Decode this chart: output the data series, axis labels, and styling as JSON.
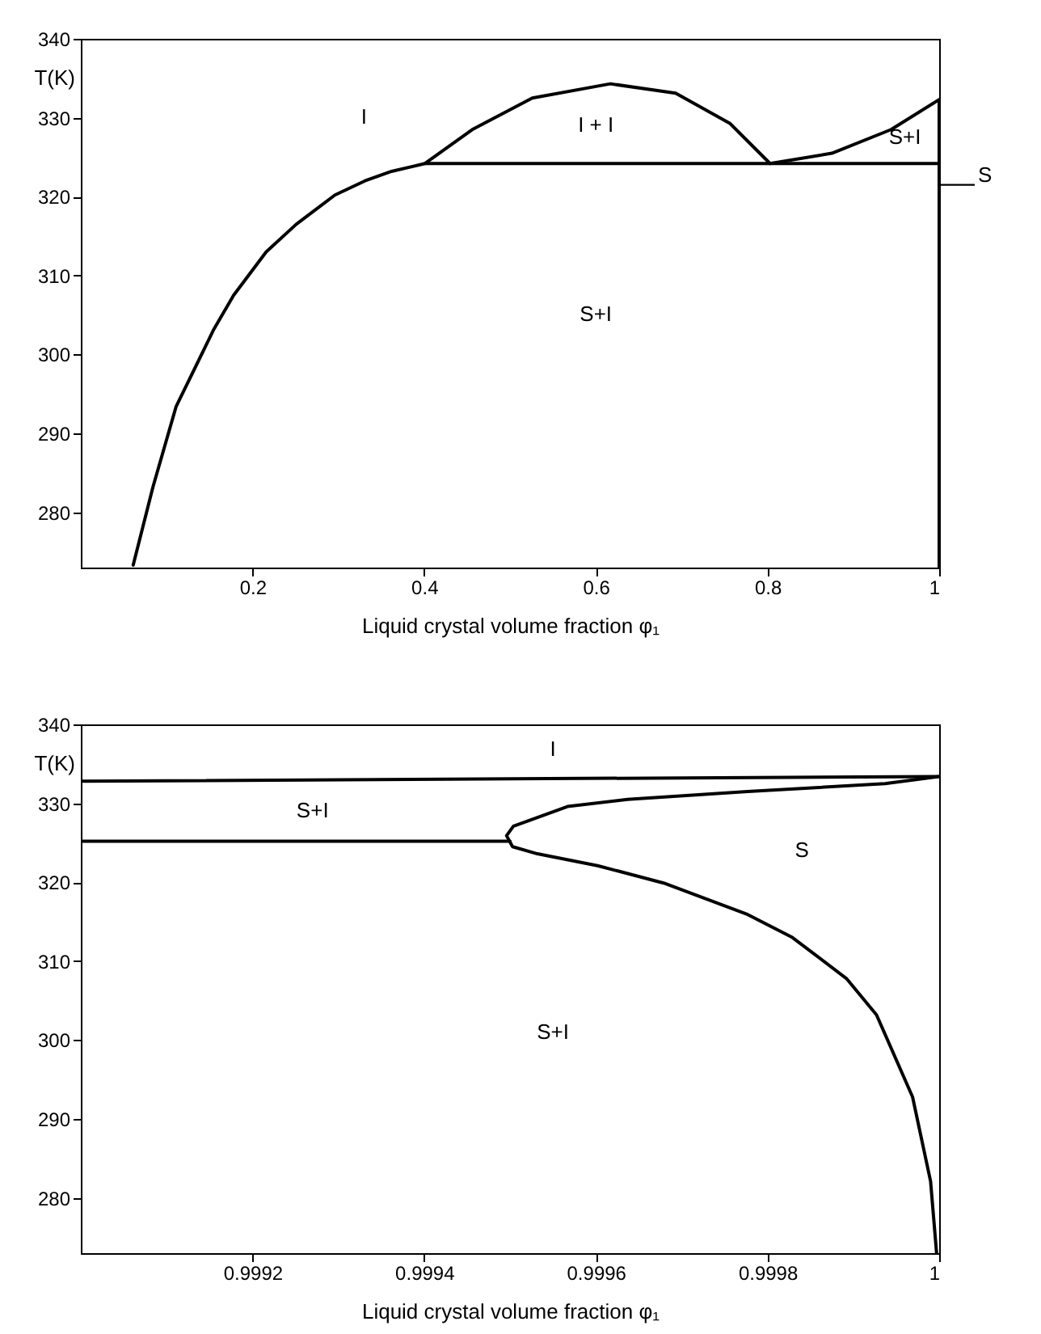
{
  "chart_data": [
    {
      "type": "line",
      "xlabel": "Liquid crystal volume fraction φ₁",
      "ylabel": "T(K)",
      "xlim": [
        0,
        1
      ],
      "ylim": [
        273,
        340
      ],
      "xticks": [
        0.2,
        0.4,
        0.6,
        0.8,
        1
      ],
      "yticks": [
        280,
        290,
        300,
        310,
        320,
        330,
        340
      ],
      "grid": false,
      "marker": "none",
      "line_style": "solid",
      "series": [
        {
          "color": "#000000",
          "x": [
            0.061,
            0.084,
            0.111,
            0.155,
            0.178,
            0.216,
            0.251,
            0.296,
            0.331,
            0.362,
            0.401,
            0.456,
            0.526,
            0.617,
            0.693,
            0.756,
            0.803,
            0.875,
            0.944,
            1.0,
            1.0
          ],
          "values": [
            273.3,
            283.2,
            293.4,
            303.2,
            307.5,
            313,
            316.5,
            320.2,
            322,
            323.2,
            324.2,
            328.5,
            332.5,
            334.3,
            333.1,
            329.3,
            324.2,
            325.5,
            328.5,
            332.3,
            273
          ]
        },
        {
          "color": "#000000",
          "x": [
            0.401,
            1.0
          ],
          "values": [
            324.2,
            324.2
          ]
        }
      ],
      "annotations": [
        "I",
        "I + I",
        "S+I",
        "S+I",
        {
          "text": "S",
          "x": 1,
          "y": 321.5
        }
      ]
    },
    {
      "type": "line",
      "xlabel": "Liquid crystal volume fraction φ₁",
      "ylabel": "T(K)",
      "xlim": [
        0.999,
        1
      ],
      "ylim": [
        273,
        340
      ],
      "xticks": [
        0.9992,
        0.9994,
        0.9996,
        0.9998,
        1
      ],
      "yticks": [
        280,
        290,
        300,
        310,
        320,
        330,
        340
      ],
      "grid": false,
      "marker": "none",
      "line_style": "solid",
      "series": [
        {
          "color": "#000000",
          "x": [
            0.999,
            1.0
          ],
          "values": [
            332.8,
            333.4
          ]
        },
        {
          "color": "#000000",
          "x": [
            0.999,
            0.9995
          ],
          "values": [
            325.2,
            325.2
          ]
        },
        {
          "color": "#000000",
          "x": [
            1.0,
            0.999937,
            0.999777,
            0.999637,
            0.999567,
            0.999532,
            0.999504,
            0.999496,
            0.999503,
            0.999532,
            0.999602,
            0.999679,
            0.999777,
            0.999829,
            0.999892,
            0.999927,
            0.999969,
            0.99999,
            0.999997
          ],
          "values": [
            333.4,
            332.5,
            331.5,
            330.5,
            329.6,
            328.2,
            327.1,
            325.9,
            324.5,
            323.6,
            322.1,
            319.9,
            315.9,
            313,
            307.8,
            303.2,
            292.8,
            282.1,
            273
          ]
        }
      ],
      "annotations": [
        "I",
        "S+I",
        "S",
        "S+I"
      ]
    }
  ]
}
